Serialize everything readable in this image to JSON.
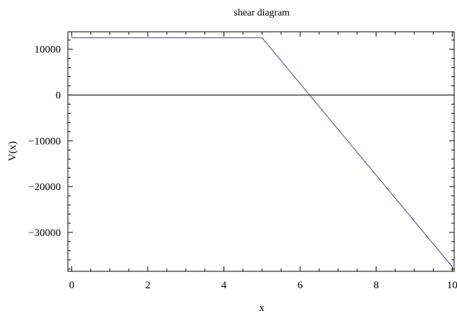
{
  "chart_data": {
    "type": "line",
    "title": "shear diagram",
    "xlabel": "x",
    "ylabel": "V(x)",
    "xlim": [
      -0.1,
      10.05
    ],
    "ylim": [
      -38500,
      13800
    ],
    "x_ticks": [
      0,
      2,
      4,
      6,
      8,
      10
    ],
    "y_ticks": [
      10000,
      0,
      -10000,
      -20000,
      -30000
    ],
    "x_tick_labels": [
      "0",
      "2",
      "4",
      "6",
      "8",
      "10"
    ],
    "y_tick_labels": [
      "10000",
      "0",
      "−10000",
      "−20000",
      "−30000"
    ],
    "grid": false,
    "zero_line": true,
    "series": [
      {
        "color": "#3f3f9e",
        "points": [
          {
            "x": 0,
            "y": 12500
          },
          {
            "x": 5,
            "y": 12500
          },
          {
            "x": 10,
            "y": -37500
          }
        ]
      }
    ]
  }
}
